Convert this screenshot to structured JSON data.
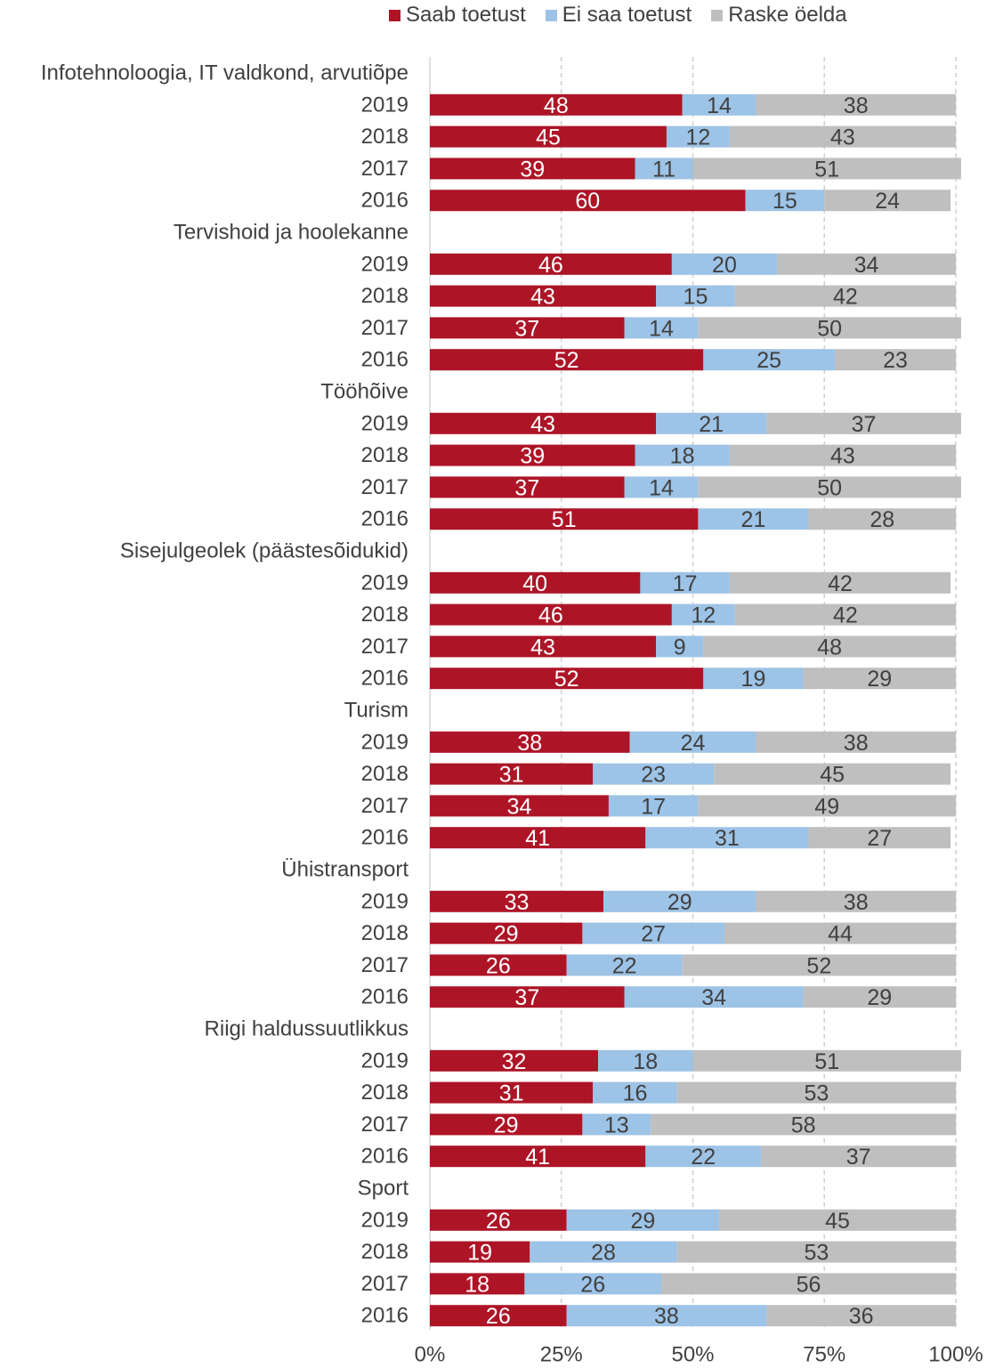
{
  "chart_data": {
    "type": "bar",
    "orientation": "horizontal",
    "stacked": true,
    "percent_stacked": true,
    "title": "",
    "xlabel": "",
    "ylabel": "",
    "xlim": [
      0,
      100
    ],
    "x_ticks": [
      "0%",
      "25%",
      "50%",
      "75%",
      "100%"
    ],
    "grid": "vertical dashed",
    "legend_position": "top",
    "series": [
      {
        "name": "Saab toetust",
        "color": "#ad1527",
        "label_color": "#ffffff"
      },
      {
        "name": "Ei saa toetust",
        "color": "#9dc3e6",
        "label_color": "#404040"
      },
      {
        "name": "Raske öelda",
        "color": "#bfbfbf",
        "label_color": "#404040"
      }
    ],
    "groups": [
      {
        "name": "Infotehnoloogia, IT valdkond, arvutiõpe",
        "rows": [
          {
            "year": "2019",
            "values": [
              48,
              14,
              38
            ]
          },
          {
            "year": "2018",
            "values": [
              45,
              12,
              43
            ]
          },
          {
            "year": "2017",
            "values": [
              39,
              11,
              51
            ]
          },
          {
            "year": "2016",
            "values": [
              60,
              15,
              24
            ]
          }
        ]
      },
      {
        "name": "Tervishoid ja hoolekanne",
        "rows": [
          {
            "year": "2019",
            "values": [
              46,
              20,
              34
            ]
          },
          {
            "year": "2018",
            "values": [
              43,
              15,
              42
            ]
          },
          {
            "year": "2017",
            "values": [
              37,
              14,
              50
            ]
          },
          {
            "year": "2016",
            "values": [
              52,
              25,
              23
            ]
          }
        ]
      },
      {
        "name": "Tööhõive",
        "rows": [
          {
            "year": "2019",
            "values": [
              43,
              21,
              37
            ]
          },
          {
            "year": "2018",
            "values": [
              39,
              18,
              43
            ]
          },
          {
            "year": "2017",
            "values": [
              37,
              14,
              50
            ]
          },
          {
            "year": "2016",
            "values": [
              51,
              21,
              28
            ]
          }
        ]
      },
      {
        "name": "Sisejulgeolek (päästesõidukid)",
        "rows": [
          {
            "year": "2019",
            "values": [
              40,
              17,
              42
            ]
          },
          {
            "year": "2018",
            "values": [
              46,
              12,
              42
            ]
          },
          {
            "year": "2017",
            "values": [
              43,
              9,
              48
            ]
          },
          {
            "year": "2016",
            "values": [
              52,
              19,
              29
            ]
          }
        ]
      },
      {
        "name": "Turism",
        "rows": [
          {
            "year": "2019",
            "values": [
              38,
              24,
              38
            ]
          },
          {
            "year": "2018",
            "values": [
              31,
              23,
              45
            ]
          },
          {
            "year": "2017",
            "values": [
              34,
              17,
              49
            ]
          },
          {
            "year": "2016",
            "values": [
              41,
              31,
              27
            ]
          }
        ]
      },
      {
        "name": "Ühistransport",
        "rows": [
          {
            "year": "2019",
            "values": [
              33,
              29,
              38
            ]
          },
          {
            "year": "2018",
            "values": [
              29,
              27,
              44
            ]
          },
          {
            "year": "2017",
            "values": [
              26,
              22,
              52
            ]
          },
          {
            "year": "2016",
            "values": [
              37,
              34,
              29
            ]
          }
        ]
      },
      {
        "name": "Riigi haldussuutlikkus",
        "rows": [
          {
            "year": "2019",
            "values": [
              32,
              18,
              51
            ]
          },
          {
            "year": "2018",
            "values": [
              31,
              16,
              53
            ]
          },
          {
            "year": "2017",
            "values": [
              29,
              13,
              58
            ]
          },
          {
            "year": "2016",
            "values": [
              41,
              22,
              37
            ]
          }
        ]
      },
      {
        "name": "Sport",
        "rows": [
          {
            "year": "2019",
            "values": [
              26,
              29,
              45
            ]
          },
          {
            "year": "2018",
            "values": [
              19,
              28,
              53
            ]
          },
          {
            "year": "2017",
            "values": [
              18,
              26,
              56
            ]
          },
          {
            "year": "2016",
            "values": [
              26,
              38,
              36
            ]
          }
        ]
      }
    ]
  }
}
